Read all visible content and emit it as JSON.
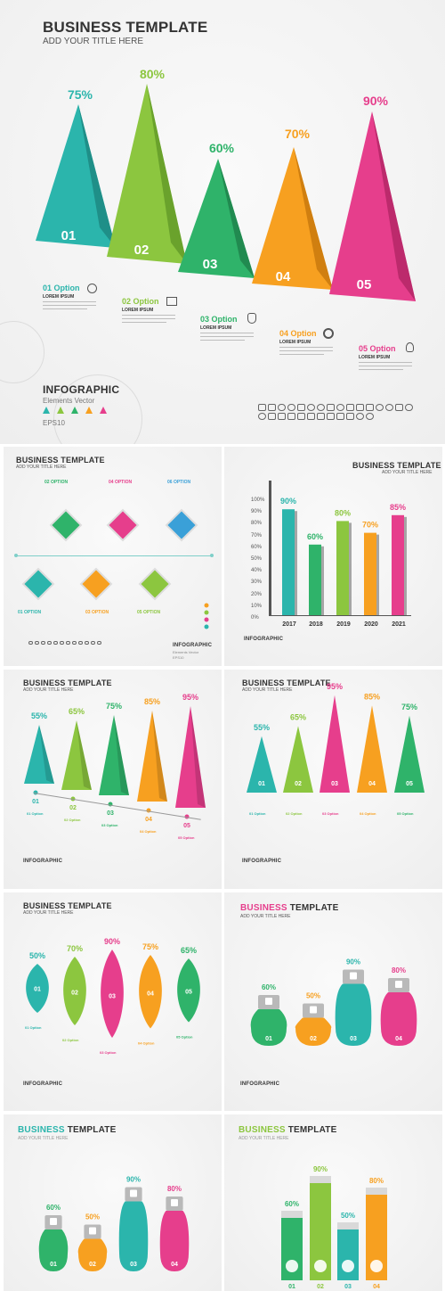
{
  "main": {
    "title": "BUSINESS TEMPLATE",
    "subtitle": "ADD YOUR TITLE HERE",
    "items": [
      {
        "num": "01",
        "pct": "75%",
        "option": "01 Option",
        "label": "LOREM IPSUM",
        "color": "#2bb5ac"
      },
      {
        "num": "02",
        "pct": "80%",
        "option": "02 Option",
        "label": "LOREM IPSUM",
        "color": "#8cc63f"
      },
      {
        "num": "03",
        "pct": "60%",
        "option": "03 Option",
        "label": "LOREM IPSUM",
        "color": "#2fb36a"
      },
      {
        "num": "04",
        "pct": "70%",
        "option": "04 Option",
        "label": "LOREM IPSUM",
        "color": "#f7a020"
      },
      {
        "num": "05",
        "pct": "90%",
        "option": "05 Option",
        "label": "LOREM IPSUM",
        "color": "#e63e8c"
      }
    ],
    "infographic": "INFOGRAPHIC",
    "elements": "Elements Vector",
    "eps": "EPS10"
  },
  "p1": {
    "title": "BUSINESS TEMPLATE",
    "subtitle": "ADD YOUR TITLE HERE",
    "options": [
      "01 OPTION",
      "02 OPTION",
      "03 OPTION",
      "04 OPTION",
      "05 OPTION",
      "06 OPTION"
    ],
    "infographic": "INFOGRAPHIC",
    "elements": "Elements Vector",
    "eps": "EPS10"
  },
  "p2": {
    "title": "BUSINESS TEMPLATE",
    "subtitle": "ADD YOUR TITLE HERE",
    "ticks": [
      "100%",
      "90%",
      "80%",
      "70%",
      "60%",
      "50%",
      "40%",
      "30%",
      "20%",
      "10%",
      "0%"
    ],
    "infographic": "INFOGRAPHIC"
  },
  "p3": {
    "title": "BUSINESS TEMPLATE",
    "subtitle": "ADD YOUR TITLE HERE",
    "infographic": "INFOGRAPHIC",
    "nums": [
      "01",
      "02",
      "03",
      "04",
      "05"
    ],
    "options": [
      "01 Option",
      "02 Option",
      "03 Option",
      "04 Option",
      "05 Option"
    ]
  },
  "p4": {
    "title": "BUSINESS TEMPLATE",
    "subtitle": "ADD YOUR TITLE HERE",
    "infographic": "INFOGRAPHIC",
    "options": [
      "01 Option",
      "02 Option",
      "03 Option",
      "04 Option",
      "05 Option"
    ]
  },
  "p5": {
    "title": "BUSINESS TEMPLATE",
    "subtitle": "ADD YOUR TITLE HERE",
    "infographic": "INFOGRAPHIC",
    "options": [
      "01 Option",
      "02 Option",
      "03 Option",
      "04 Option",
      "05 Option"
    ]
  },
  "p6": {
    "title_a": "BUSINESS",
    "title_b": " TEMPLATE",
    "subtitle": "ADD YOUR TITLE HERE",
    "infographic": "INFOGRAPHIC"
  },
  "p7": {
    "title_a": "BUSINESS",
    "title_b": " TEMPLATE",
    "subtitle": "ADD YOUR TITLE HERE"
  },
  "p8": {
    "title_a": "BUSINESS",
    "title_b": " TEMPLATE",
    "subtitle": "ADD YOUR TITLE HERE"
  },
  "chart_data": [
    {
      "type": "bar",
      "categories": [
        "2017",
        "2018",
        "2019",
        "2020",
        "2021"
      ],
      "values": [
        90,
        60,
        80,
        70,
        85
      ],
      "ylim": [
        0,
        100
      ],
      "colors": [
        "#2bb5ac",
        "#2fb36a",
        "#8cc63f",
        "#f7a020",
        "#e63e8c"
      ],
      "labels": [
        "90%",
        "60%",
        "80%",
        "70%",
        "85%"
      ]
    },
    {
      "type": "bar",
      "categories": [
        "01",
        "02",
        "03",
        "04",
        "05"
      ],
      "values": [
        55,
        65,
        75,
        85,
        95
      ],
      "colors": [
        "#2bb5ac",
        "#8cc63f",
        "#2fb36a",
        "#f7a020",
        "#e63e8c"
      ],
      "labels": [
        "55%",
        "65%",
        "75%",
        "85%",
        "95%"
      ]
    },
    {
      "type": "bar",
      "categories": [
        "01",
        "02",
        "03",
        "04",
        "05"
      ],
      "values": [
        55,
        65,
        95,
        85,
        75
      ],
      "colors": [
        "#2bb5ac",
        "#8cc63f",
        "#e63e8c",
        "#f7a020",
        "#2fb36a"
      ],
      "labels": [
        "55%",
        "65%",
        "95%",
        "85%",
        "75%"
      ]
    },
    {
      "type": "bar",
      "categories": [
        "01",
        "02",
        "03",
        "04",
        "05"
      ],
      "values": [
        50,
        70,
        90,
        75,
        65
      ],
      "colors": [
        "#2bb5ac",
        "#8cc63f",
        "#e63e8c",
        "#f7a020",
        "#2fb36a"
      ],
      "labels": [
        "50%",
        "70%",
        "90%",
        "75%",
        "65%"
      ]
    },
    {
      "type": "bar",
      "categories": [
        "01",
        "02",
        "03",
        "04"
      ],
      "values": [
        60,
        50,
        90,
        80
      ],
      "colors": [
        "#2fb36a",
        "#f7a020",
        "#2bb5ac",
        "#e63e8c"
      ],
      "labels": [
        "60%",
        "50%",
        "90%",
        "80%"
      ]
    },
    {
      "type": "bar",
      "categories": [
        "01",
        "02",
        "03",
        "04"
      ],
      "values": [
        60,
        50,
        90,
        80
      ],
      "colors": [
        "#2fb36a",
        "#f7a020",
        "#2bb5ac",
        "#e63e8c"
      ],
      "labels": [
        "60%",
        "50%",
        "90%",
        "80%"
      ]
    },
    {
      "type": "bar",
      "categories": [
        "01",
        "02",
        "03",
        "04"
      ],
      "values": [
        60,
        90,
        50,
        80
      ],
      "colors": [
        "#2fb36a",
        "#8cc63f",
        "#2bb5ac",
        "#f7a020"
      ],
      "labels": [
        "60%",
        "90%",
        "50%",
        "80%"
      ]
    }
  ]
}
